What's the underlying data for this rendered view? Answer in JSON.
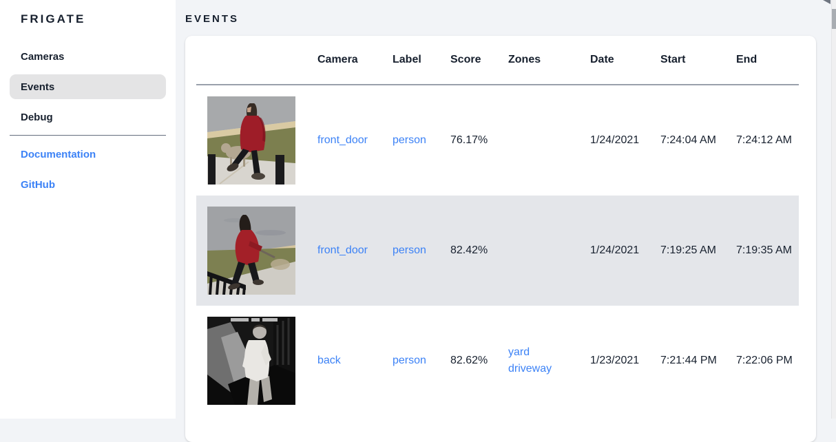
{
  "app": {
    "title": "FRIGATE"
  },
  "sidebar": {
    "items": [
      {
        "label": "Cameras",
        "selected": false
      },
      {
        "label": "Events",
        "selected": true
      },
      {
        "label": "Debug",
        "selected": false
      }
    ],
    "links": [
      {
        "label": "Documentation"
      },
      {
        "label": "GitHub"
      }
    ]
  },
  "header": {
    "title": "EVENTS"
  },
  "table": {
    "columns": [
      "Camera",
      "Label",
      "Score",
      "Zones",
      "Date",
      "Start",
      "End"
    ],
    "rows": [
      {
        "camera": "front_door",
        "label": "person",
        "score": "76.17%",
        "zones": [],
        "date": "1/24/2021",
        "start": "7:24:04 AM",
        "end": "7:24:12 AM",
        "selected": false,
        "thumb": "person-in-red-coat-walking-dog-on-sidewalk"
      },
      {
        "camera": "front_door",
        "label": "person",
        "score": "82.42%",
        "zones": [],
        "date": "1/24/2021",
        "start": "7:19:25 AM",
        "end": "7:19:35 AM",
        "selected": true,
        "thumb": "person-in-red-hoodie-walking-dog-near-railing"
      },
      {
        "camera": "back",
        "label": "person",
        "score": "82.62%",
        "zones": [
          "yard",
          "driveway"
        ],
        "date": "1/23/2021",
        "start": "7:21:44 PM",
        "end": "7:22:06 PM",
        "selected": false,
        "thumb": "grayscale-night-person-in-white-shirt"
      }
    ]
  },
  "colors": {
    "link_blue": "#3c82f6",
    "text_dark": "#17202e",
    "selected_row_bg": "#e4e6ea",
    "selected_nav_bg": "#e4e4e5",
    "page_bg": "#f2f4f7",
    "card_bg": "#ffffff",
    "header_border": "#99a0ab"
  }
}
